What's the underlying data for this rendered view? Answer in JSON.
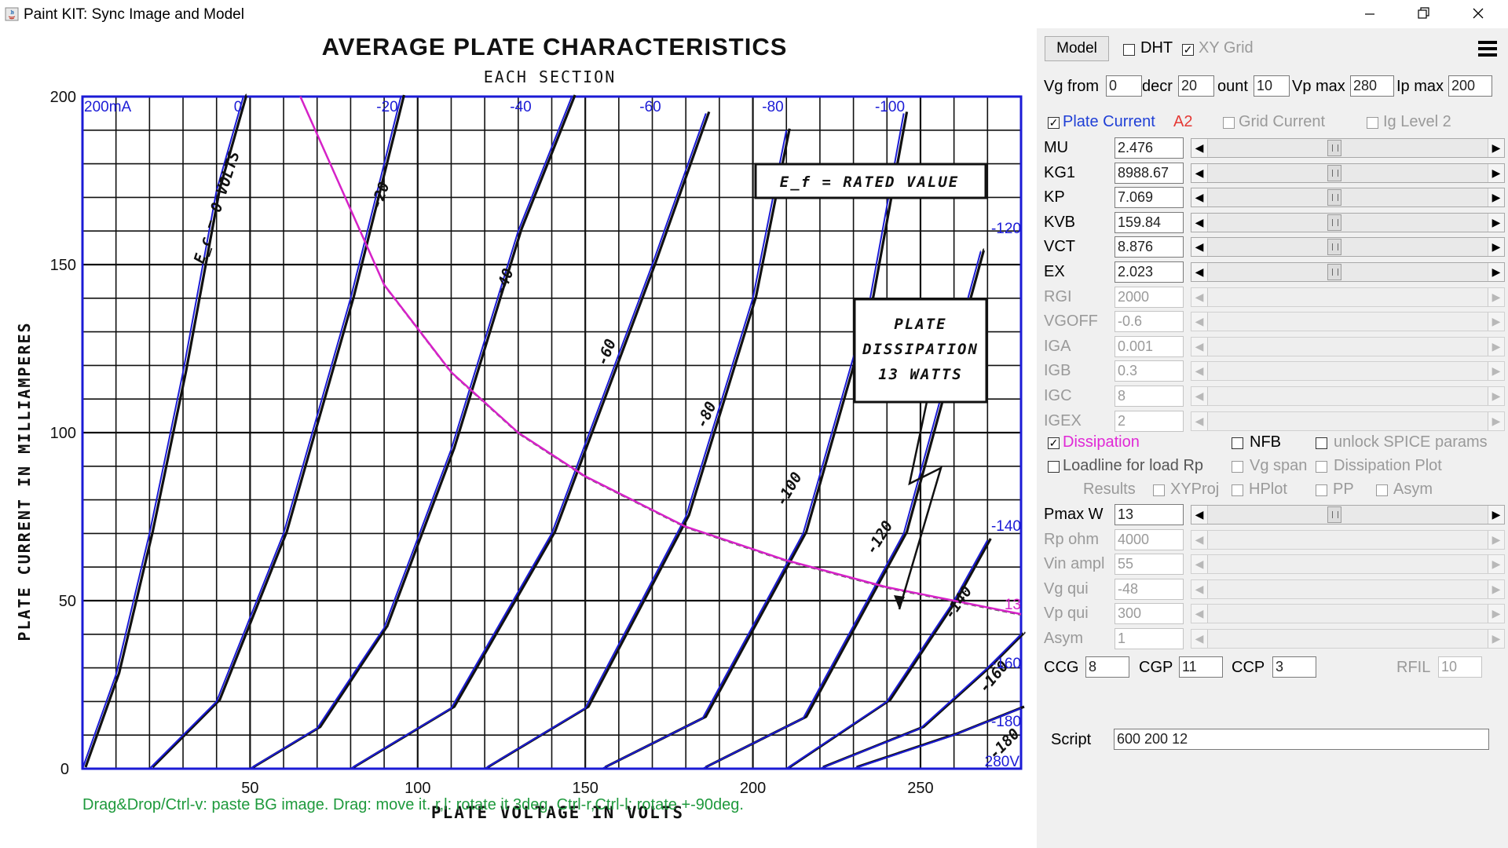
{
  "window": {
    "title": "Paint KIT: Sync Image and Model",
    "minimize_icon": "minimize-icon",
    "maximize_icon": "restore-icon",
    "close_icon": "close-icon"
  },
  "image": {
    "title": "AVERAGE PLATE CHARACTERISTICS",
    "subtitle": "EACH SECTION",
    "xlabel": "PLATE VOLTAGE IN VOLTS",
    "ylabel": "PLATE CURRENT IN MILLIAMPERES",
    "x_ticks": [
      "50",
      "100",
      "150",
      "200",
      "250"
    ],
    "y_ticks": [
      "200",
      "150",
      "100",
      "50",
      "0"
    ],
    "ef_note": "E_f = RATED VALUE",
    "dissipation_note": [
      "PLATE",
      "DISSIPATION",
      "13 WATTS"
    ],
    "grid_curve_labels": [
      "E_c = 0 VOLTS",
      "-20",
      "-40",
      "-60",
      "-80",
      "-100",
      "-120",
      "-140",
      "-160",
      "-180"
    ]
  },
  "overlay": {
    "top_left_label": "200mA",
    "bottom_right_label": "280V",
    "vg_labels_top": [
      "0",
      "-20",
      "-40",
      "-60",
      "-80",
      "-100"
    ],
    "vg_labels_right": [
      "-120",
      "-140",
      "-160",
      "-180"
    ],
    "dissipation_value_label": "13",
    "hint": "Drag&Drop/Ctrl-v: paste BG image. Drag: move it. r,l: rotate it 3deg. Ctrl-r,Ctrl-l: rotate +-90deg."
  },
  "chart_data": {
    "type": "line",
    "xlabel": "PLATE VOLTAGE IN VOLTS",
    "ylabel": "PLATE CURRENT IN MILLIAMPERES",
    "xlim": [
      0,
      280
    ],
    "ylim": [
      0,
      200
    ],
    "series": [
      {
        "name": "0",
        "x": [
          0,
          10,
          20,
          30,
          40,
          48
        ],
        "y": [
          0,
          28,
          70,
          118,
          172,
          200
        ]
      },
      {
        "name": "-20",
        "x": [
          20,
          40,
          60,
          80,
          95
        ],
        "y": [
          0,
          20,
          70,
          140,
          200
        ]
      },
      {
        "name": "-40",
        "x": [
          50,
          70,
          90,
          110,
          130,
          146
        ],
        "y": [
          0,
          12,
          42,
          95,
          160,
          200
        ]
      },
      {
        "name": "-60",
        "x": [
          80,
          110,
          140,
          170,
          186
        ],
        "y": [
          0,
          18,
          70,
          150,
          195
        ]
      },
      {
        "name": "-80",
        "x": [
          120,
          150,
          180,
          200,
          210
        ],
        "y": [
          0,
          18,
          75,
          140,
          190
        ]
      },
      {
        "name": "-100",
        "x": [
          155,
          185,
          215,
          235,
          245
        ],
        "y": [
          0,
          15,
          70,
          140,
          195
        ]
      },
      {
        "name": "-120",
        "x": [
          185,
          215,
          245,
          268
        ],
        "y": [
          0,
          15,
          70,
          154
        ]
      },
      {
        "name": "-140",
        "x": [
          210,
          240,
          260,
          270
        ],
        "y": [
          0,
          20,
          50,
          68
        ]
      },
      {
        "name": "-160",
        "x": [
          220,
          250,
          270,
          280
        ],
        "y": [
          0,
          12,
          30,
          40
        ]
      },
      {
        "name": "-180",
        "x": [
          230,
          260,
          280
        ],
        "y": [
          0,
          10,
          18
        ]
      },
      {
        "name": "13",
        "x": [
          65,
          90,
          110,
          130,
          150,
          180,
          210,
          240,
          260,
          280
        ],
        "y": [
          200,
          144,
          118,
          100,
          87,
          72,
          62,
          54,
          50,
          46
        ]
      }
    ]
  },
  "panel": {
    "model_button": "Model",
    "dht": {
      "label": "DHT",
      "checked": false
    },
    "xy_grid": {
      "label": "XY Grid",
      "checked": true
    },
    "menu_icon": "hamburger-menu-icon",
    "vg_from": {
      "label": "Vg from",
      "value": "0"
    },
    "decr": {
      "label": "decr",
      "value": "20"
    },
    "count": {
      "label": "ount",
      "value": "10"
    },
    "vp_max": {
      "label": "Vp max",
      "value": "280"
    },
    "ip_max": {
      "label": "Ip max",
      "value": "200"
    },
    "plate_current": {
      "label": "Plate Current",
      "checked": true,
      "suffix": "A2"
    },
    "grid_current": {
      "label": "Grid Current",
      "checked": false
    },
    "ig_level": {
      "label": "Ig Level 2",
      "checked": false
    },
    "params": [
      {
        "name": "MU",
        "value": "2.476",
        "enabled": true,
        "pos": 0.45
      },
      {
        "name": "KG1",
        "value": "8988.67",
        "enabled": true,
        "pos": 0.45
      },
      {
        "name": "KP",
        "value": "7.069",
        "enabled": true,
        "pos": 0.45
      },
      {
        "name": "KVB",
        "value": "159.84",
        "enabled": true,
        "pos": 0.45
      },
      {
        "name": "VCT",
        "value": "8.876",
        "enabled": true,
        "pos": 0.45
      },
      {
        "name": "EX",
        "value": "2.023",
        "enabled": true,
        "pos": 0.45
      },
      {
        "name": "RGI",
        "value": "2000",
        "enabled": false
      },
      {
        "name": "VGOFF",
        "value": "-0.6",
        "enabled": false
      },
      {
        "name": "IGA",
        "value": "0.001",
        "enabled": false
      },
      {
        "name": "IGB",
        "value": "0.3",
        "enabled": false
      },
      {
        "name": "IGC",
        "value": "8",
        "enabled": false
      },
      {
        "name": "IGEX",
        "value": "2",
        "enabled": false
      }
    ],
    "dissipation": {
      "label": "Dissipation",
      "checked": true
    },
    "nfb": {
      "label": "NFB",
      "checked": false
    },
    "unlock_spice": {
      "label": "unlock SPICE params",
      "checked": false
    },
    "loadline": {
      "label": "Loadline for load Rp",
      "checked": false
    },
    "vg_span": {
      "label": "Vg span",
      "checked": false
    },
    "dissipation_plot": {
      "label": "Dissipation Plot",
      "checked": false
    },
    "results_label": "Results",
    "xyproj": {
      "label": "XYProj",
      "checked": false
    },
    "hplot": {
      "label": "HPlot",
      "checked": false
    },
    "pp": {
      "label": "PP",
      "checked": false
    },
    "asym_cb": {
      "label": "Asym",
      "checked": false
    },
    "params2": [
      {
        "name": "Pmax W",
        "value": "13",
        "enabled": true,
        "pos": 0.45
      },
      {
        "name": "Rp ohm",
        "value": "4000",
        "enabled": false
      },
      {
        "name": "Vin ampl",
        "value": "55",
        "enabled": false
      },
      {
        "name": "Vg qui",
        "value": "-48",
        "enabled": false
      },
      {
        "name": "Vp qui",
        "value": "300",
        "enabled": false
      },
      {
        "name": "Asym",
        "value": "1",
        "enabled": false
      }
    ],
    "ccg": {
      "label": "CCG",
      "value": "8"
    },
    "cgp": {
      "label": "CGP",
      "value": "11"
    },
    "ccp": {
      "label": "CCP",
      "value": "3"
    },
    "rfil": {
      "label": "RFIL",
      "value": "10"
    },
    "script": {
      "label": "Script",
      "value": "600 200 12"
    }
  }
}
